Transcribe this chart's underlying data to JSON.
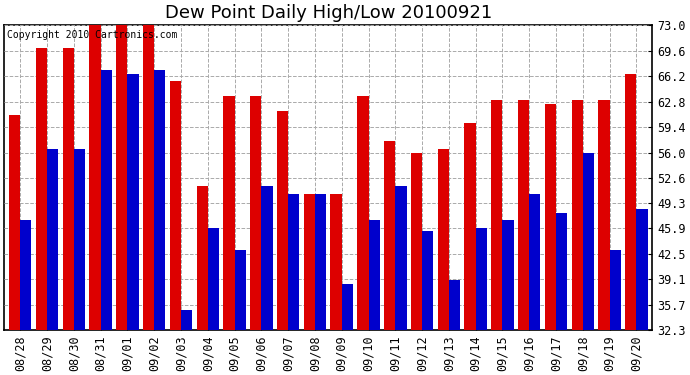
{
  "title": "Dew Point Daily High/Low 20100921",
  "copyright": "Copyright 2010 Cartronics.com",
  "dates": [
    "08/28",
    "08/29",
    "08/30",
    "08/31",
    "09/01",
    "09/02",
    "09/03",
    "09/04",
    "09/05",
    "09/06",
    "09/07",
    "09/08",
    "09/09",
    "09/10",
    "09/11",
    "09/12",
    "09/13",
    "09/14",
    "09/15",
    "09/16",
    "09/17",
    "09/18",
    "09/19",
    "09/20"
  ],
  "highs": [
    61.0,
    70.0,
    70.0,
    73.0,
    73.0,
    73.0,
    65.5,
    51.5,
    63.5,
    63.5,
    61.5,
    50.5,
    50.5,
    63.5,
    57.5,
    56.0,
    56.5,
    60.0,
    63.0,
    63.0,
    62.5,
    63.0,
    63.0,
    66.5
  ],
  "lows": [
    47.0,
    56.5,
    56.5,
    67.0,
    66.5,
    67.0,
    35.0,
    46.0,
    43.0,
    51.5,
    50.5,
    50.5,
    38.5,
    47.0,
    51.5,
    45.5,
    39.0,
    46.0,
    47.0,
    50.5,
    48.0,
    56.0,
    43.0,
    48.5
  ],
  "high_color": "#dd0000",
  "low_color": "#0000cc",
  "background_color": "#ffffff",
  "plot_bg_color": "#ffffff",
  "grid_color": "#aaaaaa",
  "ymin": 32.3,
  "ymax": 73.0,
  "yticks": [
    32.3,
    35.7,
    39.1,
    42.5,
    45.9,
    49.3,
    52.6,
    56.0,
    59.4,
    62.8,
    66.2,
    69.6,
    73.0
  ],
  "bar_width": 0.42,
  "title_fontsize": 13,
  "tick_fontsize": 8.5,
  "copyright_fontsize": 7
}
